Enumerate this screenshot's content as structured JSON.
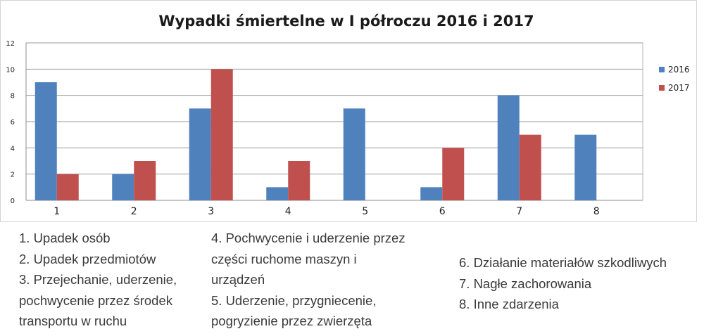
{
  "chart_data": {
    "type": "bar",
    "title": "Wypadki śmiertelne w I półroczu 2016 i 2017",
    "categories": [
      "1",
      "2",
      "3",
      "4",
      "5",
      "6",
      "7",
      "8"
    ],
    "series": [
      {
        "name": "2016",
        "color": "#4f81bd",
        "values": [
          9,
          2,
          7,
          1,
          7,
          1,
          8,
          5
        ]
      },
      {
        "name": "2017",
        "color": "#c0504d",
        "values": [
          2,
          3,
          10,
          3,
          0,
          4,
          5,
          0
        ]
      }
    ],
    "ylim": [
      0,
      12
    ],
    "yticks": [
      "0",
      "2",
      "4",
      "6",
      "8",
      "10",
      "12"
    ],
    "grid": true,
    "legend_position": "right"
  },
  "notes": {
    "col1": [
      "1. Upadek osób",
      "2. Upadek przedmiotów",
      "3. Przejechanie, uderzenie,",
      "pochwycenie przez środek",
      "transportu w ruchu"
    ],
    "col2": [
      "4. Pochwycenie i uderzenie przez",
      "części ruchome maszyn i",
      "urządzeń",
      "5.  Uderzenie, przygniecenie,",
      "pogryzienie przez zwierzęta"
    ],
    "col3": [
      "6. Działanie materiałów szkodliwych",
      "7. Nagłe zachorowania",
      "8. Inne zdarzenia"
    ]
  }
}
